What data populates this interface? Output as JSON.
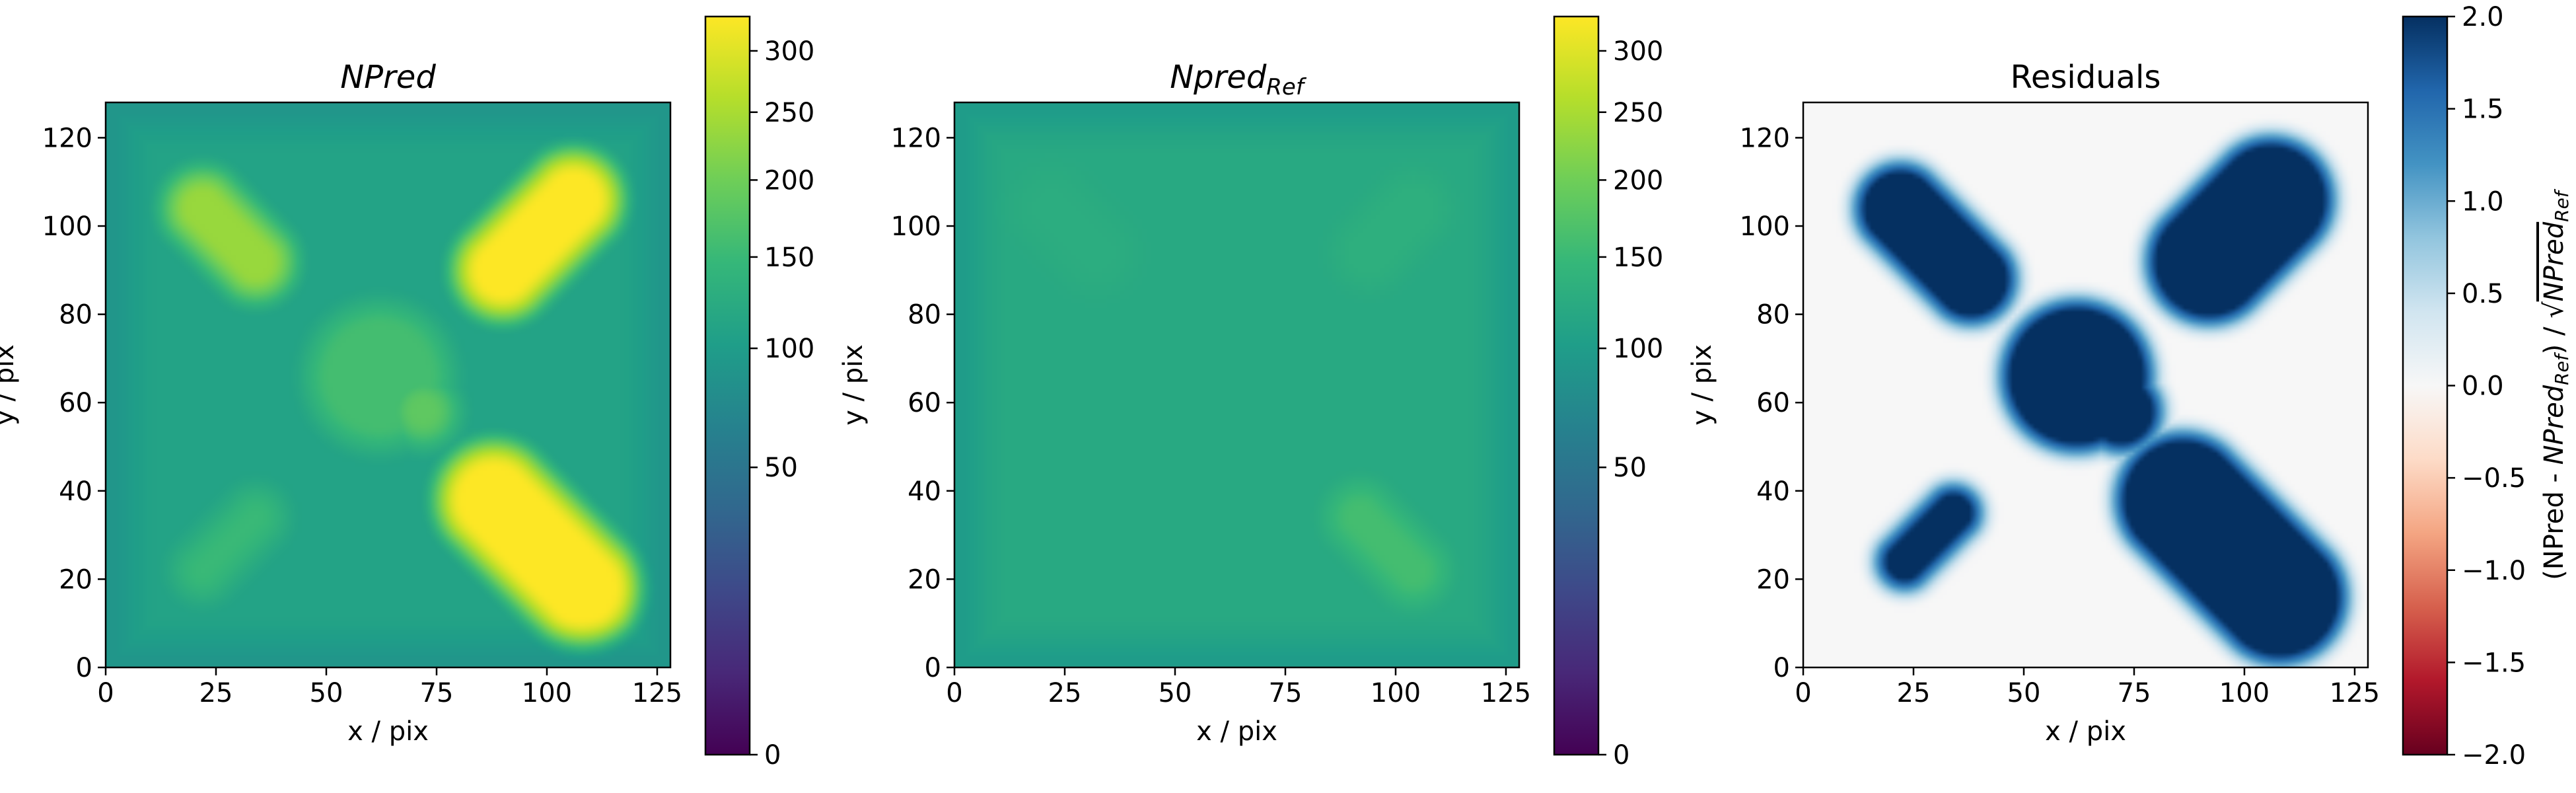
{
  "chart_data": [
    {
      "type": "heatmap",
      "title_base": "NPred",
      "title_sub": "",
      "title_italic": true,
      "xlabel": "x / pix",
      "ylabel": "y / pix",
      "xlim": [
        0,
        128
      ],
      "ylim": [
        0,
        128
      ],
      "xticks": [
        0,
        25,
        50,
        75,
        100,
        125
      ],
      "yticks": [
        0,
        20,
        40,
        60,
        80,
        100,
        120
      ],
      "colormap": "viridis",
      "colorbar": {
        "scale": "sqrt",
        "range": [
          0,
          330
        ],
        "ticks": [
          0,
          50,
          100,
          150,
          200,
          250,
          300
        ],
        "label": ""
      },
      "background_value": 110,
      "features": [
        {
          "shape": "capsule",
          "from": [
            22,
            104
          ],
          "to": [
            34,
            92
          ],
          "radius": 8,
          "value": 235
        },
        {
          "shape": "capsule",
          "from": [
            90,
            90
          ],
          "to": [
            106,
            106
          ],
          "radius": 10,
          "value": 330
        },
        {
          "shape": "capsule",
          "from": [
            88,
            38
          ],
          "to": [
            108,
            18
          ],
          "radius": 12,
          "value": 330
        },
        {
          "shape": "capsule",
          "from": [
            22,
            22
          ],
          "to": [
            34,
            34
          ],
          "radius": 6,
          "value": 150
        },
        {
          "shape": "disk",
          "center": [
            62,
            66
          ],
          "radius": 16,
          "value": 160
        },
        {
          "shape": "disk",
          "center": [
            72,
            58
          ],
          "radius": 7,
          "value": 185
        }
      ]
    },
    {
      "type": "heatmap",
      "title_base": "Npred",
      "title_sub": "Ref",
      "title_italic": true,
      "xlabel": "x / pix",
      "ylabel": "y / pix",
      "xlim": [
        0,
        128
      ],
      "ylim": [
        0,
        128
      ],
      "xticks": [
        0,
        25,
        50,
        75,
        100,
        125
      ],
      "yticks": [
        0,
        20,
        40,
        60,
        80,
        100,
        120
      ],
      "colormap": "viridis",
      "colorbar": {
        "scale": "sqrt",
        "range": [
          0,
          330
        ],
        "ticks": [
          0,
          50,
          100,
          150,
          200,
          250,
          300
        ],
        "label": ""
      },
      "background_value": 120,
      "features": [
        {
          "shape": "capsule",
          "from": [
            92,
            34
          ],
          "to": [
            104,
            22
          ],
          "radius": 7,
          "value": 160
        },
        {
          "shape": "capsule",
          "from": [
            22,
            104
          ],
          "to": [
            32,
            94
          ],
          "radius": 9,
          "value": 127
        },
        {
          "shape": "capsule",
          "from": [
            94,
            94
          ],
          "to": [
            104,
            104
          ],
          "radius": 8,
          "value": 132
        }
      ]
    },
    {
      "type": "heatmap",
      "title_base": "Residuals",
      "title_sub": "",
      "title_italic": false,
      "xlabel": "x / pix",
      "ylabel": "y / pix",
      "xlim": [
        0,
        128
      ],
      "ylim": [
        0,
        128
      ],
      "xticks": [
        0,
        25,
        50,
        75,
        100,
        125
      ],
      "yticks": [
        0,
        20,
        40,
        60,
        80,
        100,
        120
      ],
      "colormap": "RdBu",
      "colorbar": {
        "scale": "linear",
        "range": [
          -2.0,
          2.0
        ],
        "ticks": [
          -2.0,
          -1.5,
          -1.0,
          -0.5,
          0.0,
          0.5,
          1.0,
          1.5,
          2.0
        ],
        "tick_labels": [
          "−2.0",
          "−1.5",
          "−1.0",
          "−0.5",
          "0.0",
          "0.5",
          "1.0",
          "1.5",
          "2.0"
        ],
        "label_parts": [
          "(NPred - ",
          "NPred",
          "Ref",
          ") / √",
          "NPred",
          "Ref"
        ]
      },
      "background_value": 0.0,
      "features": [
        {
          "shape": "capsule",
          "from": [
            22,
            104
          ],
          "to": [
            38,
            88
          ],
          "radius": 10,
          "value": 2.5
        },
        {
          "shape": "capsule",
          "from": [
            92,
            92
          ],
          "to": [
            106,
            106
          ],
          "radius": 14,
          "value": 2.5
        },
        {
          "shape": "capsule",
          "from": [
            86,
            38
          ],
          "to": [
            108,
            16
          ],
          "radius": 15,
          "value": 2.5
        },
        {
          "shape": "capsule",
          "from": [
            23,
            24
          ],
          "to": [
            34,
            35
          ],
          "radius": 6,
          "value": 2.5
        },
        {
          "shape": "disk",
          "center": [
            62,
            66
          ],
          "radius": 17,
          "value": 2.5
        },
        {
          "shape": "disk",
          "center": [
            72,
            58
          ],
          "radius": 9,
          "value": 2.5
        }
      ]
    }
  ]
}
